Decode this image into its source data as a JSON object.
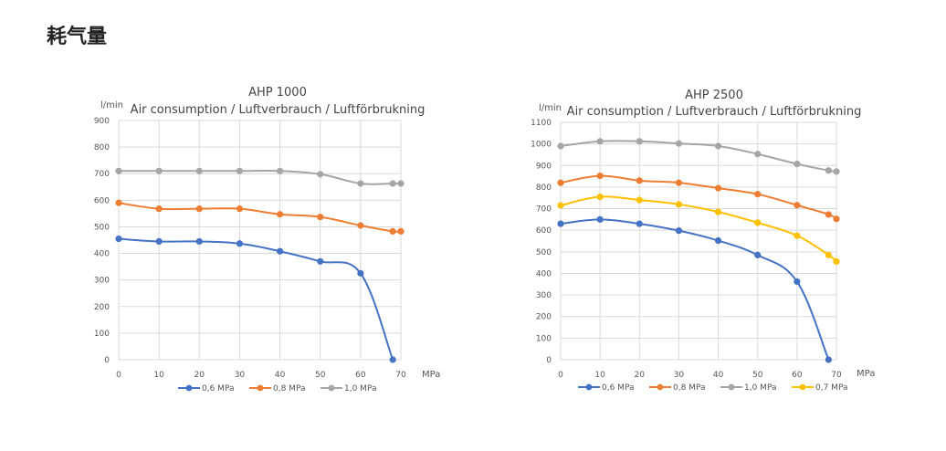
{
  "page": {
    "title": "耗气量"
  },
  "chart_data": [
    {
      "type": "line",
      "title": "AHP 1000",
      "subtitle": "Air consumption / Luftverbrauch / Luftförbrukning",
      "ylabel": "l/min",
      "xlabel": "MPa",
      "xlim": [
        0,
        70
      ],
      "ylim": [
        0,
        900
      ],
      "xticks": [
        0,
        10,
        20,
        30,
        40,
        50,
        60,
        70
      ],
      "yticks": [
        0,
        100,
        200,
        300,
        400,
        500,
        600,
        700,
        800,
        900
      ],
      "grid": true,
      "legend": "bottom",
      "series": [
        {
          "name": "0,6 MPa",
          "color": "#4472c4",
          "x": [
            0,
            10,
            20,
            30,
            40,
            50,
            60,
            68
          ],
          "y": [
            455,
            445,
            445,
            437,
            408,
            370,
            325,
            0
          ]
        },
        {
          "name": "0,8 MPa",
          "color": "#ed7d31",
          "x": [
            0,
            10,
            20,
            30,
            40,
            50,
            60,
            68,
            70
          ],
          "y": [
            590,
            568,
            568,
            568,
            547,
            537,
            505,
            483,
            483
          ]
        },
        {
          "name": "1,0 MPa",
          "color": "#a5a5a5",
          "x": [
            0,
            10,
            20,
            30,
            40,
            50,
            60,
            68,
            70
          ],
          "y": [
            710,
            710,
            710,
            710,
            710,
            698,
            663,
            663,
            663
          ]
        }
      ]
    },
    {
      "type": "line",
      "title": "AHP 2500",
      "subtitle": "Air consumption / Luftverbrauch / Luftförbrukning",
      "ylabel": "l/min",
      "xlabel": "MPa",
      "xlim": [
        0,
        70
      ],
      "ylim": [
        0,
        1100
      ],
      "xticks": [
        0,
        10,
        20,
        30,
        40,
        50,
        60,
        70
      ],
      "yticks": [
        0,
        100,
        200,
        300,
        400,
        500,
        600,
        700,
        800,
        900,
        1000,
        1100
      ],
      "grid": true,
      "legend": "bottom",
      "series": [
        {
          "name": "0,6 MPa",
          "color": "#4472c4",
          "x": [
            0,
            10,
            20,
            30,
            40,
            50,
            60,
            68
          ],
          "y": [
            630,
            650,
            630,
            598,
            552,
            485,
            362,
            0
          ]
        },
        {
          "name": "0,8 MPa",
          "color": "#ed7d31",
          "x": [
            0,
            10,
            20,
            30,
            40,
            50,
            60,
            68,
            70
          ],
          "y": [
            820,
            852,
            830,
            820,
            795,
            767,
            716,
            673,
            652
          ]
        },
        {
          "name": "1,0 MPa",
          "color": "#a5a5a5",
          "x": [
            0,
            10,
            20,
            30,
            40,
            50,
            60,
            68,
            70
          ],
          "y": [
            990,
            1012,
            1012,
            1002,
            990,
            953,
            907,
            877,
            872
          ]
        },
        {
          "name": "0,7 MPa",
          "color": "#ffc000",
          "x": [
            0,
            10,
            20,
            30,
            40,
            50,
            60,
            68,
            70
          ],
          "y": [
            715,
            755,
            740,
            720,
            685,
            635,
            575,
            485,
            455
          ]
        }
      ]
    }
  ]
}
